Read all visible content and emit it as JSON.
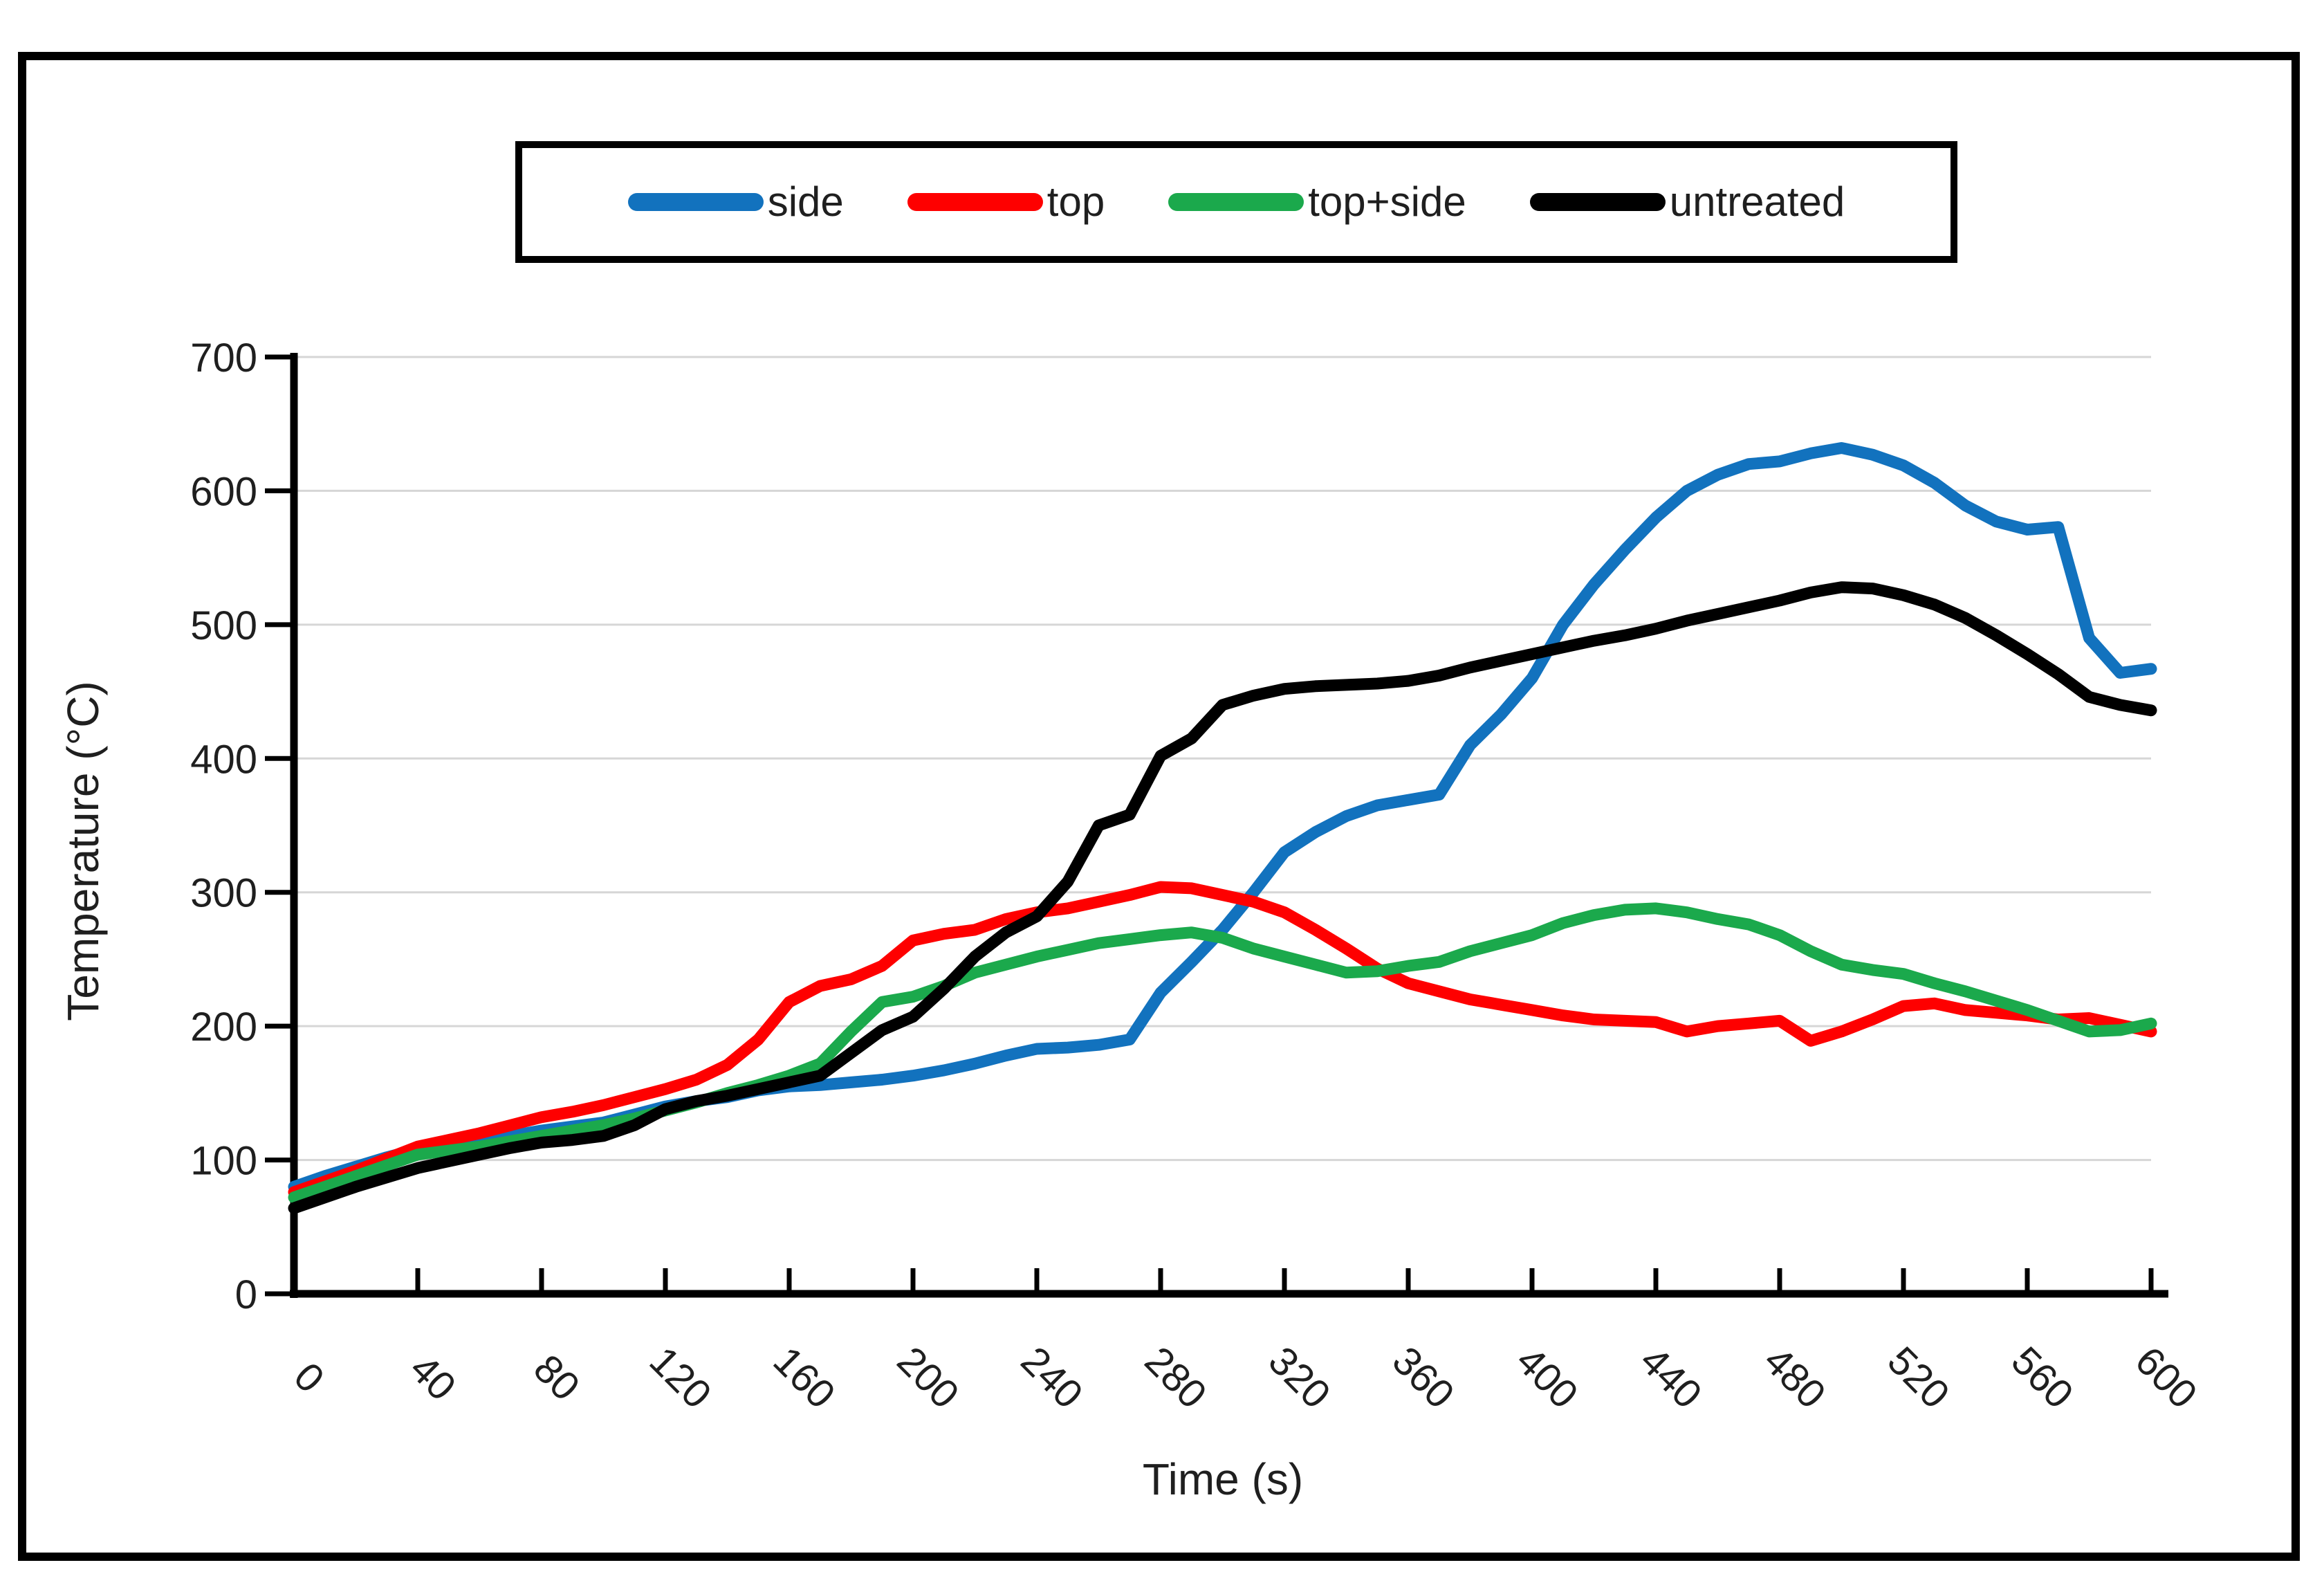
{
  "chart_data": {
    "type": "line",
    "title": "",
    "xlabel": "Time (s)",
    "ylabel": "Temperature (°C)",
    "xlim": [
      0,
      600
    ],
    "ylim": [
      0,
      700
    ],
    "xticks": [
      0,
      40,
      80,
      120,
      160,
      200,
      240,
      280,
      320,
      360,
      400,
      440,
      480,
      520,
      560,
      600
    ],
    "yticks": [
      0,
      100,
      200,
      300,
      400,
      500,
      600,
      700
    ],
    "grid": "horizontal-light-gray",
    "legend_position": "top-center",
    "axis_color": "#000000",
    "grid_color": "#d6d6d6",
    "label_color": "#1f1f1f",
    "series": [
      {
        "name": "side",
        "color": "#1272be",
        "points": [
          [
            0,
            80
          ],
          [
            10,
            88
          ],
          [
            20,
            95
          ],
          [
            30,
            102
          ],
          [
            40,
            108
          ],
          [
            50,
            111
          ],
          [
            60,
            114
          ],
          [
            70,
            118
          ],
          [
            80,
            122
          ],
          [
            90,
            125
          ],
          [
            100,
            128
          ],
          [
            110,
            134
          ],
          [
            120,
            140
          ],
          [
            130,
            144
          ],
          [
            140,
            147
          ],
          [
            150,
            152
          ],
          [
            160,
            155
          ],
          [
            170,
            156
          ],
          [
            180,
            158
          ],
          [
            190,
            160
          ],
          [
            200,
            163
          ],
          [
            210,
            167
          ],
          [
            220,
            172
          ],
          [
            230,
            178
          ],
          [
            240,
            183
          ],
          [
            250,
            184
          ],
          [
            260,
            186
          ],
          [
            270,
            190
          ],
          [
            280,
            225
          ],
          [
            290,
            248
          ],
          [
            300,
            272
          ],
          [
            310,
            300
          ],
          [
            320,
            330
          ],
          [
            330,
            345
          ],
          [
            340,
            357
          ],
          [
            350,
            365
          ],
          [
            360,
            369
          ],
          [
            370,
            373
          ],
          [
            380,
            410
          ],
          [
            390,
            433
          ],
          [
            400,
            460
          ],
          [
            410,
            500
          ],
          [
            420,
            530
          ],
          [
            430,
            556
          ],
          [
            440,
            580
          ],
          [
            450,
            600
          ],
          [
            460,
            612
          ],
          [
            470,
            620
          ],
          [
            480,
            622
          ],
          [
            490,
            628
          ],
          [
            500,
            632
          ],
          [
            510,
            627
          ],
          [
            520,
            619
          ],
          [
            530,
            606
          ],
          [
            540,
            589
          ],
          [
            550,
            577
          ],
          [
            560,
            571
          ],
          [
            570,
            573
          ],
          [
            580,
            490
          ],
          [
            590,
            464
          ],
          [
            600,
            467
          ]
        ]
      },
      {
        "name": "top",
        "color": "#fe0000",
        "points": [
          [
            0,
            76
          ],
          [
            10,
            84
          ],
          [
            20,
            92
          ],
          [
            30,
            101
          ],
          [
            40,
            110
          ],
          [
            50,
            115
          ],
          [
            60,
            120
          ],
          [
            70,
            126
          ],
          [
            80,
            132
          ],
          [
            90,
            136
          ],
          [
            100,
            141
          ],
          [
            110,
            147
          ],
          [
            120,
            153
          ],
          [
            130,
            160
          ],
          [
            140,
            171
          ],
          [
            150,
            190
          ],
          [
            160,
            218
          ],
          [
            170,
            230
          ],
          [
            180,
            235
          ],
          [
            190,
            245
          ],
          [
            200,
            264
          ],
          [
            210,
            269
          ],
          [
            220,
            272
          ],
          [
            230,
            280
          ],
          [
            240,
            285
          ],
          [
            250,
            288
          ],
          [
            260,
            293
          ],
          [
            270,
            298
          ],
          [
            280,
            304
          ],
          [
            290,
            303
          ],
          [
            300,
            298
          ],
          [
            310,
            293
          ],
          [
            320,
            285
          ],
          [
            330,
            272
          ],
          [
            340,
            258
          ],
          [
            350,
            243
          ],
          [
            360,
            232
          ],
          [
            370,
            226
          ],
          [
            380,
            220
          ],
          [
            390,
            216
          ],
          [
            400,
            212
          ],
          [
            410,
            208
          ],
          [
            420,
            205
          ],
          [
            430,
            204
          ],
          [
            440,
            203
          ],
          [
            450,
            196
          ],
          [
            460,
            200
          ],
          [
            470,
            202
          ],
          [
            480,
            204
          ],
          [
            490,
            189
          ],
          [
            500,
            196
          ],
          [
            510,
            205
          ],
          [
            520,
            215
          ],
          [
            530,
            217
          ],
          [
            540,
            212
          ],
          [
            550,
            210
          ],
          [
            560,
            208
          ],
          [
            570,
            205
          ],
          [
            580,
            206
          ],
          [
            590,
            201
          ],
          [
            600,
            196
          ]
        ]
      },
      {
        "name": "top+side",
        "color": "#1ba94c",
        "points": [
          [
            0,
            72
          ],
          [
            10,
            80
          ],
          [
            20,
            88
          ],
          [
            30,
            96
          ],
          [
            40,
            104
          ],
          [
            50,
            107
          ],
          [
            60,
            110
          ],
          [
            70,
            114
          ],
          [
            80,
            118
          ],
          [
            90,
            122
          ],
          [
            100,
            126
          ],
          [
            110,
            131
          ],
          [
            120,
            137
          ],
          [
            130,
            143
          ],
          [
            140,
            150
          ],
          [
            150,
            156
          ],
          [
            160,
            163
          ],
          [
            170,
            172
          ],
          [
            180,
            196
          ],
          [
            190,
            218
          ],
          [
            200,
            222
          ],
          [
            210,
            230
          ],
          [
            220,
            240
          ],
          [
            230,
            246
          ],
          [
            240,
            252
          ],
          [
            250,
            257
          ],
          [
            260,
            262
          ],
          [
            270,
            265
          ],
          [
            280,
            268
          ],
          [
            290,
            270
          ],
          [
            300,
            266
          ],
          [
            310,
            258
          ],
          [
            320,
            252
          ],
          [
            330,
            246
          ],
          [
            340,
            240
          ],
          [
            350,
            241
          ],
          [
            360,
            245
          ],
          [
            370,
            248
          ],
          [
            380,
            256
          ],
          [
            390,
            262
          ],
          [
            400,
            268
          ],
          [
            410,
            277
          ],
          [
            420,
            283
          ],
          [
            430,
            287
          ],
          [
            440,
            288
          ],
          [
            450,
            285
          ],
          [
            460,
            280
          ],
          [
            470,
            276
          ],
          [
            480,
            268
          ],
          [
            490,
            256
          ],
          [
            500,
            246
          ],
          [
            510,
            242
          ],
          [
            520,
            239
          ],
          [
            530,
            232
          ],
          [
            540,
            226
          ],
          [
            550,
            219
          ],
          [
            560,
            212
          ],
          [
            570,
            204
          ],
          [
            580,
            196
          ],
          [
            590,
            197
          ],
          [
            600,
            202
          ]
        ]
      },
      {
        "name": "untreated",
        "color": "#000000",
        "points": [
          [
            0,
            64
          ],
          [
            10,
            72
          ],
          [
            20,
            80
          ],
          [
            30,
            87
          ],
          [
            40,
            94
          ],
          [
            50,
            99
          ],
          [
            60,
            104
          ],
          [
            70,
            109
          ],
          [
            80,
            113
          ],
          [
            90,
            115
          ],
          [
            100,
            118
          ],
          [
            110,
            126
          ],
          [
            120,
            138
          ],
          [
            130,
            144
          ],
          [
            140,
            148
          ],
          [
            150,
            153
          ],
          [
            160,
            158
          ],
          [
            170,
            163
          ],
          [
            180,
            180
          ],
          [
            190,
            197
          ],
          [
            200,
            207
          ],
          [
            210,
            228
          ],
          [
            220,
            252
          ],
          [
            230,
            270
          ],
          [
            240,
            282
          ],
          [
            250,
            308
          ],
          [
            260,
            350
          ],
          [
            270,
            358
          ],
          [
            280,
            402
          ],
          [
            290,
            415
          ],
          [
            300,
            440
          ],
          [
            310,
            447
          ],
          [
            320,
            452
          ],
          [
            330,
            454
          ],
          [
            340,
            455
          ],
          [
            350,
            456
          ],
          [
            360,
            458
          ],
          [
            370,
            462
          ],
          [
            380,
            468
          ],
          [
            390,
            473
          ],
          [
            400,
            478
          ],
          [
            410,
            483
          ],
          [
            420,
            488
          ],
          [
            430,
            492
          ],
          [
            440,
            497
          ],
          [
            450,
            503
          ],
          [
            460,
            508
          ],
          [
            470,
            513
          ],
          [
            480,
            518
          ],
          [
            490,
            524
          ],
          [
            500,
            528
          ],
          [
            510,
            527
          ],
          [
            520,
            522
          ],
          [
            530,
            515
          ],
          [
            540,
            505
          ],
          [
            550,
            492
          ],
          [
            560,
            478
          ],
          [
            570,
            463
          ],
          [
            580,
            446
          ],
          [
            590,
            440
          ],
          [
            600,
            436
          ]
        ]
      }
    ]
  }
}
